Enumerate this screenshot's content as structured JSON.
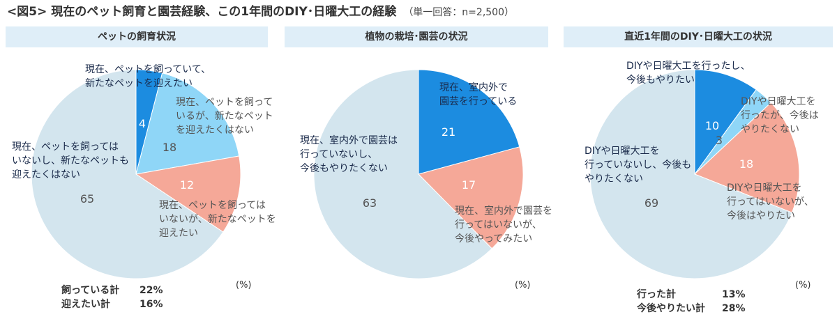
{
  "title": "<図5> 現在のペット飼育と園芸経験、この1年間のDIY･日曜大工の経験",
  "subtitle": "（単一回答：n=2,500）",
  "unit": "(%)",
  "colors": {
    "dark_blue": "#1c8ce0",
    "light_blue": "#8fd6f7",
    "salmon": "#f5a898",
    "pale": "#d3e5ee",
    "header_bg": "#dfeef8"
  },
  "chart_data": [
    {
      "type": "pie",
      "title": "ペットの飼育状況",
      "slices": [
        {
          "value": 4,
          "color": "#1c8ce0",
          "label": [
            "現在、ペットを飼っていて、",
            "新たなペットを迎えたい"
          ]
        },
        {
          "value": 18,
          "color": "#8fd6f7",
          "label": [
            "現在、ペットを飼って",
            "いるが、新たなペット",
            "を迎えたくはない"
          ]
        },
        {
          "value": 12,
          "color": "#f5a898",
          "label": [
            "現在、ペットを飼っては",
            "いないが、新たなペットを",
            "迎えたい"
          ]
        },
        {
          "value": 65,
          "color": "#d3e5ee",
          "label": [
            "現在、ペットを飼っては",
            "いないし、新たなペットも",
            "迎えたくはない"
          ]
        }
      ],
      "summary": [
        {
          "label": "飼っている計",
          "value": "22%"
        },
        {
          "label": "迎えたい計",
          "value": "16%"
        }
      ]
    },
    {
      "type": "pie",
      "title": "植物の栽培･園芸の状況",
      "slices": [
        {
          "value": 21,
          "color": "#1c8ce0",
          "label": [
            "現在、室内外で",
            "園芸を行っている"
          ]
        },
        {
          "value": 17,
          "color": "#f5a898",
          "label": [
            "現在、室内外で園芸を",
            "行ってはいないが、",
            "今後やってみたい"
          ]
        },
        {
          "value": 63,
          "color": "#d3e5ee",
          "label": [
            "現在、室内外で園芸は",
            "行っていないし、",
            "今後もやりたくない"
          ]
        }
      ]
    },
    {
      "type": "pie",
      "title": "直近1年間のDIY･日曜大工の状況",
      "slices": [
        {
          "value": 10,
          "color": "#1c8ce0",
          "label": [
            "DIYや日曜大工を行ったし、",
            "今後もやりたい"
          ]
        },
        {
          "value": 3,
          "color": "#8fd6f7",
          "label": [
            "DIYや日曜大工を",
            "行ったが、今後は",
            "やりたくない"
          ]
        },
        {
          "value": 18,
          "color": "#f5a898",
          "label": [
            "DIYや日曜大工を",
            "行ってはいないが、",
            "今後はやりたい"
          ]
        },
        {
          "value": 69,
          "color": "#d3e5ee",
          "label": [
            "DIYや日曜大工を",
            "行っていないし、今後も",
            "やりたくない"
          ]
        }
      ],
      "summary": [
        {
          "label": "行った計",
          "value": "13%"
        },
        {
          "label": "今後やりたい計",
          "value": "28%"
        }
      ]
    }
  ]
}
